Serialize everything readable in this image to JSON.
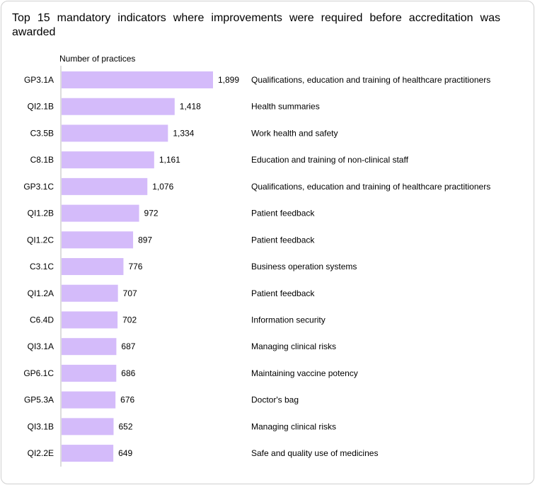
{
  "chart_data": {
    "type": "bar",
    "orientation": "horizontal",
    "title": "Top 15 mandatory indicators where improvements were required before accreditation was awarded",
    "xlabel": "Number of practices",
    "categories": [
      "GP3.1A",
      "QI2.1B",
      "C3.5B",
      "C8.1B",
      "GP3.1C",
      "QI1.2B",
      "QI1.2C",
      "C3.1C",
      "QI1.2A",
      "C6.4D",
      "QI3.1A",
      "GP6.1C",
      "GP5.3A",
      "QI3.1B",
      "QI2.2E"
    ],
    "values": [
      1899,
      1418,
      1334,
      1161,
      1076,
      972,
      897,
      776,
      707,
      702,
      687,
      686,
      676,
      652,
      649
    ],
    "value_labels": [
      "1,899",
      "1,418",
      "1,334",
      "1,161",
      "1,076",
      "972",
      "897",
      "776",
      "707",
      "702",
      "687",
      "686",
      "676",
      "652",
      "649"
    ],
    "descriptions": [
      "Qualifications, education and training of healthcare practitioners",
      "Health summaries",
      "Work health and safety",
      "Education and training of non-clinical staff",
      "Qualifications, education and training of healthcare practitioners",
      "Patient feedback",
      "Patient feedback",
      "Business operation systems",
      "Patient feedback",
      "Information security",
      "Managing clinical risks",
      "Maintaining vaccine potency",
      "Doctor's bag",
      "Managing clinical risks",
      "Safe and quality use of medicines"
    ],
    "grid": false,
    "bar_color": "#d4bbfa"
  }
}
